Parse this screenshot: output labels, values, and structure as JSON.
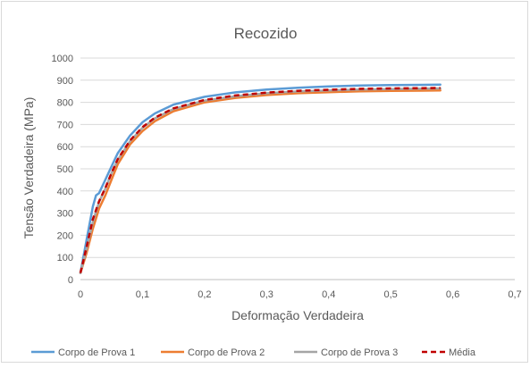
{
  "chart_data": {
    "type": "line",
    "title": "Recozido",
    "xlabel": "Deformação Verdadeira",
    "ylabel": "Tensão Verdadeira (MPa)",
    "xlim": [
      0,
      0.7
    ],
    "ylim": [
      0,
      1000
    ],
    "x_ticks": [
      "0",
      "0,1",
      "0,2",
      "0,3",
      "0,4",
      "0,5",
      "0,6",
      "0,7"
    ],
    "y_ticks": [
      "0",
      "100",
      "200",
      "300",
      "400",
      "500",
      "600",
      "700",
      "800",
      "900",
      "1000"
    ],
    "grid": "horizontal",
    "legend_position": "bottom",
    "series": [
      {
        "name": "Corpo de Prova 1",
        "color": "#5b9bd5",
        "dash": "solid",
        "x": [
          0,
          0.01,
          0.02,
          0.025,
          0.03,
          0.04,
          0.05,
          0.06,
          0.08,
          0.1,
          0.12,
          0.15,
          0.2,
          0.25,
          0.3,
          0.35,
          0.4,
          0.45,
          0.5,
          0.55,
          0.58
        ],
        "y": [
          30,
          180,
          330,
          380,
          390,
          450,
          510,
          570,
          650,
          710,
          750,
          790,
          825,
          845,
          858,
          866,
          872,
          876,
          878,
          879,
          880
        ]
      },
      {
        "name": "Corpo de Prova 2",
        "color": "#ed7d31",
        "dash": "solid",
        "x": [
          0,
          0.01,
          0.02,
          0.03,
          0.04,
          0.05,
          0.06,
          0.08,
          0.1,
          0.12,
          0.15,
          0.2,
          0.25,
          0.3,
          0.35,
          0.4,
          0.45,
          0.5,
          0.55,
          0.58
        ],
        "y": [
          30,
          120,
          230,
          320,
          380,
          450,
          520,
          610,
          670,
          715,
          760,
          800,
          820,
          833,
          841,
          846,
          850,
          852,
          853,
          854
        ]
      },
      {
        "name": "Corpo de Prova 3",
        "color": "#a5a5a5",
        "dash": "solid",
        "x": [
          0,
          0.01,
          0.02,
          0.03,
          0.04,
          0.05,
          0.06,
          0.08,
          0.1,
          0.12,
          0.15,
          0.2,
          0.25,
          0.3,
          0.35,
          0.4,
          0.45,
          0.5,
          0.55,
          0.58
        ],
        "y": [
          30,
          140,
          260,
          350,
          410,
          480,
          540,
          625,
          685,
          728,
          770,
          808,
          828,
          841,
          849,
          854,
          858,
          860,
          862,
          863
        ]
      },
      {
        "name": "Média",
        "color": "#c00000",
        "dash": "dashed",
        "x": [
          0,
          0.01,
          0.02,
          0.03,
          0.04,
          0.05,
          0.06,
          0.08,
          0.1,
          0.12,
          0.15,
          0.2,
          0.25,
          0.3,
          0.35,
          0.4,
          0.45,
          0.5,
          0.55,
          0.58
        ],
        "y": [
          30,
          147,
          273,
          353,
          413,
          480,
          543,
          628,
          688,
          731,
          773,
          811,
          831,
          844,
          852,
          857,
          861,
          863,
          864,
          865
        ]
      }
    ]
  }
}
